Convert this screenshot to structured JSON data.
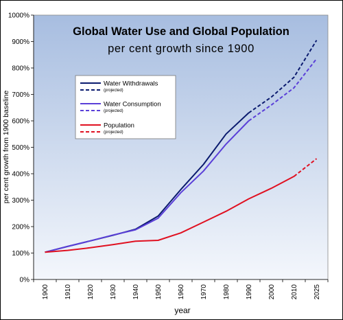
{
  "chart_data": {
    "type": "line",
    "title": "Global Water Use and Global Population",
    "subtitle": "per cent growth since 1900",
    "xlabel": "year",
    "ylabel": "per cent growth from 1900 baseline",
    "categories": [
      "1900",
      "1910",
      "1920",
      "1930",
      "1940",
      "1950",
      "1960",
      "1970",
      "1980",
      "1990",
      "2000",
      "2010",
      "2025"
    ],
    "y_ticks": [
      "0%",
      "100%",
      "200%",
      "300%",
      "400%",
      "500%",
      "600%",
      "700%",
      "800%",
      "900%",
      "1000%"
    ],
    "ylim": [
      0,
      1000
    ],
    "grid": false,
    "legend_position": "upper-left",
    "series": [
      {
        "name": "Water Withdrawals",
        "note": "(projected)",
        "color": "#0a1a6e",
        "values": [
          103,
          125,
          146,
          167,
          190,
          240,
          340,
          435,
          550,
          630,
          690,
          765,
          905
        ],
        "projected_from_index": 9
      },
      {
        "name": "Water Consumption",
        "note": "(projected)",
        "color": "#5a3fd8",
        "values": [
          103,
          125,
          146,
          168,
          188,
          232,
          328,
          410,
          512,
          600,
          660,
          725,
          835
        ],
        "projected_from_index": 9
      },
      {
        "name": "Population",
        "note": "(projected)",
        "color": "#e01020",
        "values": [
          103,
          110,
          120,
          132,
          145,
          148,
          176,
          217,
          258,
          305,
          345,
          390,
          457
        ],
        "projected_from_index": 11
      }
    ]
  }
}
